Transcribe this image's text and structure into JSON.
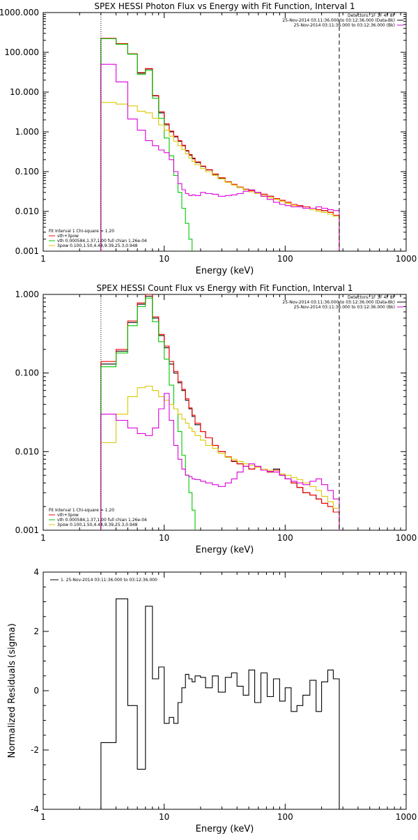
{
  "chart_data": [
    {
      "type": "line",
      "title": "SPEX HESSI Photon Flux vs Energy with Fit Function, Interval 1",
      "xlabel": "Energy (keV)",
      "ylabel": "",
      "xscale": "log",
      "yscale": "log",
      "xlim": [
        1,
        1000
      ],
      "ylim": [
        0.001,
        1000
      ],
      "x_ticks": [
        "1",
        "10",
        "100",
        "1000"
      ],
      "y_ticks": [
        "0.001",
        "0.010",
        "0.100",
        "1.000",
        "10.000",
        "100.000",
        "1000.000"
      ],
      "vlines": [
        {
          "x": 3,
          "style": "dotted"
        },
        {
          "x": 280,
          "style": "dashed"
        }
      ],
      "legend_topright": [
        "Detectors: 1F 3F 4F 8F",
        "25-Nov-2014 03:11:36.000 to 03:12:36.000 (Data-Bk)",
        "25-Nov-2014 03:11:36.000 to 03:12:36.000 (Bk)"
      ],
      "legend_bottomleft": [
        "Fit Interval 1   Chi-square = 1.20",
        "vth+3pow",
        "vth 0.000584,1.37,1.00  full chian 1.26e-04",
        "3pow 0.100,1.50,4.44,9.39,25.3,0.948"
      ],
      "series": [
        {
          "name": "Data-Bk",
          "color": "#000000",
          "x": [
            3,
            4,
            5,
            6,
            7,
            8,
            9,
            10,
            11,
            12,
            13,
            14,
            15,
            16,
            17,
            18,
            20,
            22,
            25,
            28,
            32,
            36,
            40,
            45,
            50,
            56,
            63,
            71,
            80,
            90,
            100,
            112,
            125,
            140,
            160,
            180,
            200,
            225,
            250,
            280
          ],
          "y": [
            220,
            160,
            90,
            30,
            38,
            8,
            3,
            1.5,
            1,
            0.75,
            0.58,
            0.45,
            0.33,
            0.26,
            0.21,
            0.17,
            0.135,
            0.11,
            0.085,
            0.068,
            0.055,
            0.047,
            0.04,
            0.036,
            0.033,
            0.03,
            0.027,
            0.024,
            0.021,
            0.019,
            0.017,
            0.015,
            0.014,
            0.013,
            0.012,
            0.011,
            0.0105,
            0.0095,
            0.008,
            0.0065
          ]
        },
        {
          "name": "vth+3pow",
          "color": "#ff0000",
          "x": [
            3,
            4,
            5,
            6,
            7,
            8,
            9,
            10,
            11,
            12,
            13,
            14,
            15,
            16,
            17,
            18,
            20,
            22,
            25,
            28,
            32,
            36,
            40,
            45,
            50,
            56,
            63,
            71,
            80,
            90,
            100,
            112,
            125,
            140,
            160,
            180,
            200,
            225,
            250,
            280
          ],
          "y": [
            225,
            165,
            92,
            31,
            39,
            8.2,
            3.2,
            1.6,
            1.05,
            0.78,
            0.6,
            0.46,
            0.34,
            0.27,
            0.22,
            0.175,
            0.138,
            0.112,
            0.087,
            0.07,
            0.056,
            0.048,
            0.041,
            0.036,
            0.033,
            0.03,
            0.027,
            0.024,
            0.021,
            0.019,
            0.017,
            0.015,
            0.014,
            0.013,
            0.012,
            0.011,
            0.0105,
            0.0095,
            0.008,
            0.0065
          ]
        },
        {
          "name": "vth",
          "color": "#00c800",
          "x": [
            3,
            4,
            5,
            6,
            7,
            8,
            9,
            10,
            11,
            12,
            13,
            14,
            15,
            16,
            17,
            18
          ],
          "y": [
            220,
            160,
            90,
            28,
            35,
            7,
            2.2,
            0.7,
            0.25,
            0.08,
            0.03,
            0.012,
            0.005,
            0.002,
            0.0008,
            0.0003
          ]
        },
        {
          "name": "3pow",
          "color": "#dcc800",
          "x": [
            3,
            4,
            5,
            6,
            7,
            8,
            9,
            10,
            11,
            12,
            13,
            14,
            15,
            16,
            17,
            18,
            20,
            22,
            25,
            28,
            32,
            36,
            40,
            45,
            50,
            56,
            63,
            71,
            80,
            90,
            100,
            112,
            125,
            140,
            160,
            180,
            200,
            225,
            250,
            280
          ],
          "y": [
            5.5,
            5,
            4.5,
            3.3,
            3,
            2.2,
            1.5,
            1.1,
            0.78,
            0.58,
            0.45,
            0.36,
            0.28,
            0.22,
            0.18,
            0.15,
            0.12,
            0.1,
            0.08,
            0.066,
            0.054,
            0.046,
            0.04,
            0.035,
            0.031,
            0.028,
            0.025,
            0.022,
            0.02,
            0.018,
            0.016,
            0.014,
            0.013,
            0.012,
            0.011,
            0.01,
            0.0095,
            0.0085,
            0.0075,
            0.006
          ]
        },
        {
          "name": "Bk",
          "color": "#dc00dc",
          "x": [
            3,
            4,
            5,
            6,
            7,
            8,
            9,
            10,
            11,
            12,
            13,
            14,
            15,
            16,
            17,
            18,
            20,
            22,
            25,
            28,
            32,
            36,
            40,
            45,
            50,
            56,
            63,
            71,
            80,
            90,
            100,
            112,
            125,
            140,
            160,
            180,
            200,
            225,
            250,
            280
          ],
          "y": [
            50,
            18,
            2.1,
            1.1,
            0.6,
            0.45,
            0.35,
            0.3,
            0.2,
            0.1,
            0.05,
            0.035,
            0.028,
            0.025,
            0.026,
            0.025,
            0.03,
            0.028,
            0.027,
            0.024,
            0.025,
            0.026,
            0.028,
            0.032,
            0.035,
            0.03,
            0.024,
            0.02,
            0.017,
            0.015,
            0.014,
            0.013,
            0.013,
            0.012,
            0.012,
            0.013,
            0.012,
            0.011,
            0.0105,
            0.0095
          ]
        }
      ]
    },
    {
      "type": "line",
      "title": "SPEX HESSI Count Flux vs Energy with Fit Function, Interval 1",
      "xlabel": "Energy (keV)",
      "ylabel": "",
      "xscale": "log",
      "yscale": "log",
      "xlim": [
        1,
        1000
      ],
      "ylim": [
        0.001,
        1.0
      ],
      "x_ticks": [
        "1",
        "10",
        "100",
        "1000"
      ],
      "y_ticks": [
        "0.001",
        "0.010",
        "0.100",
        "1.000"
      ],
      "vlines": [
        {
          "x": 3,
          "style": "dotted"
        },
        {
          "x": 280,
          "style": "dashed"
        }
      ],
      "legend_topright": [
        "Detectors: 1F 3F 4F 8F",
        "25-Nov-2014 03:11:36.000 to 03:12:36.000 (Data-Bk)",
        "25-Nov-2014 03:11:36.000 to 03:12:36.000 (Bk)"
      ],
      "legend_bottomleft": [
        "Fit Interval 1   Chi-square = 1.20",
        "vth+3pow",
        "vth 0.000584,1.37,1.00  full chian 1.26e-04",
        "3pow 0.100,1.50,4.44,9.39,25.3,0.948"
      ],
      "series": [
        {
          "name": "Data-Bk",
          "color": "#000000",
          "x": [
            3,
            4,
            5,
            6,
            7,
            8,
            9,
            10,
            11,
            12,
            13,
            14,
            15,
            16,
            17,
            18,
            20,
            22,
            25,
            28,
            32,
            36,
            40,
            45,
            50,
            56,
            63,
            71,
            80,
            90,
            100,
            112,
            125,
            140,
            160,
            180,
            200,
            225,
            250,
            280
          ],
          "y": [
            0.13,
            0.19,
            0.44,
            0.75,
            0.95,
            0.5,
            0.3,
            0.21,
            0.13,
            0.1,
            0.075,
            0.06,
            0.045,
            0.035,
            0.028,
            0.022,
            0.018,
            0.015,
            0.012,
            0.01,
            0.0085,
            0.0075,
            0.007,
            0.0065,
            0.006,
            0.0065,
            0.0058,
            0.0055,
            0.006,
            0.005,
            0.0045,
            0.004,
            0.0035,
            0.003,
            0.0028,
            0.0025,
            0.0022,
            0.002,
            0.0017,
            0.0014
          ]
        },
        {
          "name": "vth+3pow",
          "color": "#ff0000",
          "x": [
            3,
            4,
            5,
            6,
            7,
            8,
            9,
            10,
            11,
            12,
            13,
            14,
            15,
            16,
            17,
            18,
            20,
            22,
            25,
            28,
            32,
            36,
            40,
            45,
            50,
            56,
            63,
            71,
            80,
            90,
            100,
            112,
            125,
            140,
            160,
            180,
            200,
            225,
            250,
            280
          ],
          "y": [
            0.14,
            0.2,
            0.46,
            0.78,
            1.0,
            0.52,
            0.31,
            0.22,
            0.14,
            0.105,
            0.078,
            0.062,
            0.047,
            0.036,
            0.029,
            0.023,
            0.018,
            0.015,
            0.012,
            0.01,
            0.0086,
            0.0076,
            0.007,
            0.0065,
            0.006,
            0.0063,
            0.0058,
            0.0055,
            0.0058,
            0.005,
            0.0045,
            0.004,
            0.0035,
            0.003,
            0.0028,
            0.0025,
            0.0022,
            0.002,
            0.0017,
            0.0014
          ]
        },
        {
          "name": "vth",
          "color": "#00c800",
          "x": [
            3,
            4,
            5,
            6,
            7,
            8,
            9,
            10,
            11,
            12,
            13,
            14,
            15,
            16,
            17,
            18
          ],
          "y": [
            0.12,
            0.18,
            0.4,
            0.7,
            0.9,
            0.45,
            0.25,
            0.15,
            0.07,
            0.035,
            0.018,
            0.009,
            0.005,
            0.003,
            0.0018,
            0.001
          ]
        },
        {
          "name": "3pow",
          "color": "#dcc800",
          "x": [
            3,
            4,
            5,
            6,
            7,
            8,
            9,
            10,
            11,
            12,
            13,
            14,
            15,
            16,
            17,
            18,
            20,
            22,
            25,
            28,
            32,
            36,
            40,
            45,
            50,
            56,
            63,
            71,
            80,
            90,
            100,
            112,
            125,
            140,
            160,
            180,
            200,
            225,
            250,
            280
          ],
          "y": [
            0.013,
            0.03,
            0.05,
            0.065,
            0.068,
            0.06,
            0.05,
            0.045,
            0.04,
            0.035,
            0.03,
            0.026,
            0.023,
            0.02,
            0.018,
            0.016,
            0.014,
            0.012,
            0.011,
            0.0095,
            0.0085,
            0.008,
            0.0075,
            0.007,
            0.0067,
            0.0063,
            0.006,
            0.0058,
            0.0055,
            0.0052,
            0.005,
            0.0047,
            0.0044,
            0.004,
            0.0036,
            0.0032,
            0.0027,
            0.0023,
            0.0019,
            0.0015
          ]
        },
        {
          "name": "Bk",
          "color": "#dc00dc",
          "x": [
            3,
            4,
            5,
            6,
            7,
            8,
            9,
            10,
            11,
            12,
            13,
            14,
            15,
            16,
            17,
            18,
            20,
            22,
            25,
            28,
            32,
            36,
            40,
            45,
            50,
            56,
            63,
            71,
            80,
            90,
            100,
            112,
            125,
            140,
            160,
            180,
            200,
            225,
            250,
            280
          ],
          "y": [
            0.03,
            0.025,
            0.02,
            0.017,
            0.016,
            0.02,
            0.035,
            0.055,
            0.025,
            0.012,
            0.008,
            0.006,
            0.005,
            0.0048,
            0.0045,
            0.0044,
            0.0042,
            0.004,
            0.0038,
            0.0036,
            0.004,
            0.0045,
            0.0055,
            0.0065,
            0.007,
            0.0065,
            0.0058,
            0.0056,
            0.0055,
            0.005,
            0.0045,
            0.0042,
            0.004,
            0.0038,
            0.0042,
            0.0045,
            0.0038,
            0.0032,
            0.0025,
            0.002
          ]
        }
      ]
    },
    {
      "type": "line",
      "title": "",
      "xlabel": "Energy (keV)",
      "ylabel": "Normalized Residuals (sigma)",
      "xscale": "log",
      "yscale": "linear",
      "xlim": [
        1,
        1000
      ],
      "ylim": [
        -4,
        4
      ],
      "x_ticks": [
        "1",
        "10",
        "100",
        "1000"
      ],
      "y_ticks": [
        "-4",
        "-2",
        "0",
        "2",
        "4"
      ],
      "legend": [
        "1. 25-Nov-2014 03:11:36.000 to 03:12:36.000"
      ],
      "series": [
        {
          "name": "1. 25-Nov-2014 03:11:36.000 to 03:12:36.000",
          "color": "#000000",
          "x": [
            3,
            4,
            5,
            6,
            7,
            8,
            9,
            10,
            11,
            12,
            13,
            14,
            15,
            16,
            17,
            18,
            20,
            22,
            25,
            28,
            32,
            36,
            40,
            45,
            50,
            56,
            63,
            71,
            80,
            90,
            100,
            112,
            125,
            140,
            160,
            180,
            200,
            225,
            250,
            280
          ],
          "y": [
            -1.75,
            3.1,
            -0.5,
            -2.65,
            2.85,
            0.4,
            0.8,
            -1.1,
            -0.9,
            -1.1,
            -0.4,
            0.1,
            0.55,
            0.4,
            0.3,
            0.5,
            0.45,
            0.1,
            0.5,
            -0.05,
            0.45,
            0.6,
            0.15,
            -0.15,
            0.7,
            -0.4,
            0.6,
            -0.2,
            0.4,
            -0.35,
            0.1,
            -0.7,
            -0.5,
            -0.15,
            0.35,
            -0.7,
            0.3,
            0.7,
            0.4,
            0.3
          ]
        }
      ]
    }
  ]
}
